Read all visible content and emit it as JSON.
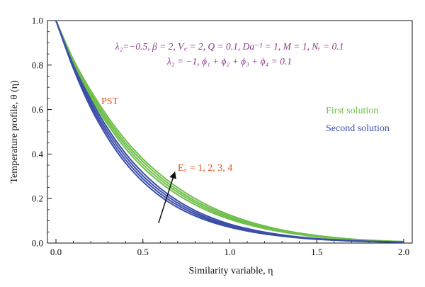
{
  "colors": {
    "first": "#6fbf4a",
    "second": "#3b4ea8",
    "params": "#8c3a8c",
    "annotation": "#e0531f",
    "axis": "#111111"
  },
  "chart_data": {
    "type": "line",
    "xlabel": "Similarity variable, η",
    "ylabel": "Temperature profile, θ (η)",
    "xlim": [
      0,
      2.0
    ],
    "ylim": [
      0,
      1.0
    ],
    "x_ticks": [
      "0.0",
      "0.5",
      "1.0",
      "1.5",
      "2.0"
    ],
    "y_ticks": [
      "0.0",
      "0.2",
      "0.4",
      "0.6",
      "0.8",
      "1.0"
    ],
    "grid": false,
    "legend": {
      "position": "right",
      "entries": [
        {
          "label": "First solution",
          "color": "#6fbf4a"
        },
        {
          "label": "Second solution",
          "color": "#3b4ea8"
        }
      ]
    },
    "params_line1": "λ₂=−0.5, β = 2, V꜀ = 2, Q = 0.1, Da⁻¹ = 1, M = 1, Nᵣ = 0.1",
    "params_line2": "λ₂ = −1, ϕ₁ + ϕ₂ + ϕ₃ + ϕ₄ = 0.1",
    "pst_label": "PST",
    "arrow_label": "E꜀ = 1, 2, 3, 4",
    "x": [
      0.0,
      0.1,
      0.2,
      0.3,
      0.4,
      0.5,
      0.6,
      0.7,
      0.8,
      0.9,
      1.0,
      1.1,
      1.2,
      1.3,
      1.4,
      1.5,
      1.6,
      1.7,
      1.8,
      1.9,
      2.0
    ],
    "series": [
      {
        "group": "First solution",
        "Ec": 1,
        "values": [
          1.0,
          0.81,
          0.655,
          0.53,
          0.425,
          0.34,
          0.272,
          0.217,
          0.172,
          0.136,
          0.107,
          0.084,
          0.065,
          0.05,
          0.038,
          0.028,
          0.021,
          0.015,
          0.011,
          0.008,
          0.006
        ]
      },
      {
        "group": "First solution",
        "Ec": 2,
        "values": [
          1.0,
          0.815,
          0.665,
          0.542,
          0.438,
          0.353,
          0.284,
          0.228,
          0.181,
          0.143,
          0.113,
          0.089,
          0.069,
          0.053,
          0.04,
          0.03,
          0.022,
          0.016,
          0.012,
          0.009,
          0.006
        ]
      },
      {
        "group": "First solution",
        "Ec": 3,
        "values": [
          1.0,
          0.82,
          0.675,
          0.553,
          0.45,
          0.366,
          0.296,
          0.238,
          0.19,
          0.151,
          0.119,
          0.093,
          0.072,
          0.056,
          0.042,
          0.032,
          0.024,
          0.017,
          0.012,
          0.009,
          0.006
        ]
      },
      {
        "group": "First solution",
        "Ec": 4,
        "values": [
          1.0,
          0.825,
          0.685,
          0.565,
          0.463,
          0.378,
          0.308,
          0.249,
          0.2,
          0.159,
          0.126,
          0.099,
          0.077,
          0.059,
          0.045,
          0.034,
          0.025,
          0.018,
          0.013,
          0.009,
          0.007
        ]
      },
      {
        "group": "Second solution",
        "Ec": 1,
        "values": [
          1.0,
          0.785,
          0.608,
          0.47,
          0.36,
          0.276,
          0.21,
          0.16,
          0.122,
          0.093,
          0.071,
          0.054,
          0.041,
          0.031,
          0.023,
          0.017,
          0.013,
          0.009,
          0.007,
          0.005,
          0.004
        ]
      },
      {
        "group": "Second solution",
        "Ec": 2,
        "values": [
          1.0,
          0.79,
          0.62,
          0.484,
          0.374,
          0.289,
          0.222,
          0.17,
          0.13,
          0.099,
          0.075,
          0.057,
          0.043,
          0.032,
          0.024,
          0.018,
          0.013,
          0.01,
          0.007,
          0.005,
          0.004
        ]
      },
      {
        "group": "Second solution",
        "Ec": 3,
        "values": [
          1.0,
          0.795,
          0.632,
          0.498,
          0.389,
          0.302,
          0.234,
          0.18,
          0.138,
          0.105,
          0.08,
          0.061,
          0.046,
          0.035,
          0.026,
          0.019,
          0.014,
          0.01,
          0.008,
          0.006,
          0.004
        ]
      },
      {
        "group": "Second solution",
        "Ec": 4,
        "values": [
          1.0,
          0.8,
          0.645,
          0.512,
          0.403,
          0.316,
          0.246,
          0.19,
          0.146,
          0.112,
          0.085,
          0.065,
          0.049,
          0.037,
          0.027,
          0.02,
          0.015,
          0.011,
          0.008,
          0.006,
          0.004
        ]
      }
    ],
    "arrow": {
      "from": [
        0.59,
        0.09
      ],
      "to": [
        0.68,
        0.31
      ]
    }
  }
}
